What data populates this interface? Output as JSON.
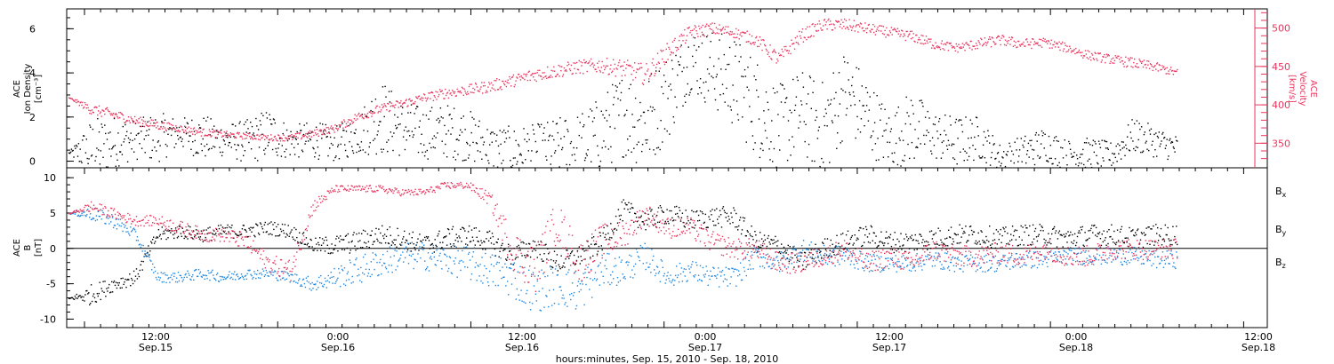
{
  "chart_data": [
    {
      "type": "scatter",
      "panel": "top",
      "left_axis": {
        "label_lines": [
          "ACE",
          "Ion Density",
          "[cm⁻³]"
        ],
        "ylim": [
          -0.3,
          6.9
        ],
        "ticks": [
          0,
          2,
          4,
          6
        ],
        "tick_labels": [
          "0",
          "2",
          "4",
          "6"
        ]
      },
      "right_axis": {
        "label_lines": [
          "ACE",
          "Velocity",
          "[km/s]"
        ],
        "ylim": [
          318,
          525
        ],
        "ticks": [
          350,
          400,
          450,
          500
        ],
        "tick_labels": [
          "350",
          "400",
          "450",
          "500"
        ],
        "color": "#e8375f"
      },
      "series": [
        {
          "key": "density",
          "color": "#000000",
          "axis": "left",
          "t": [
            0,
            0.2,
            0.4,
            0.6,
            0.8,
            1,
            1.2,
            1.4,
            1.6,
            1.8,
            2,
            2.2,
            2.4,
            2.6,
            2.8,
            3,
            3.2,
            3.4,
            3.6,
            3.8,
            4,
            4.2,
            4.4,
            4.6,
            4.8,
            5,
            5.2,
            5.4,
            5.6,
            5.8,
            6,
            6.2,
            6.4,
            6.6,
            6.8,
            7,
            7.2,
            7.4,
            7.6,
            7.8,
            8,
            8.2,
            8.4,
            8.6,
            8.8,
            9,
            9.2,
            9.4,
            9.6,
            9.8,
            10
          ],
          "v": [
            0.4,
            0.5,
            0.9,
            1.0,
            1.1,
            1.3,
            1.1,
            1.0,
            0.9,
            1.3,
            0.9,
            1.0,
            0.8,
            1.2,
            2.1,
            1.5,
            1.3,
            1.4,
            1.2,
            0.6,
            0.5,
            0.5,
            0.7,
            0.5,
            1.3,
            2.2,
            1.8,
            3.0,
            4.6,
            4.2,
            3.6,
            2.5,
            1.5,
            2.3,
            1.4,
            3.2,
            2.1,
            1.0,
            1.6,
            1.2,
            0.9,
            1.1,
            0.2,
            0.4,
            0.8,
            0.3,
            0.4,
            0.3,
            1.2,
            0.9,
            0.6
          ],
          "scatter": [
            0,
            3.0,
            2.4,
            1.8,
            2.3,
            1.4,
            2.1,
            1.5,
            2.0,
            2.4,
            1.5,
            1.7,
            1.6,
            1.8,
            3.6,
            2.6,
            2.4,
            2.5,
            2.4,
            2.2,
            2.2,
            2.4,
            2.6,
            3.6,
            3.4,
            4.0,
            4.4,
            4.0,
            3.0,
            3.6,
            4.2,
            4.6,
            4.0,
            3.8,
            4.6,
            4.0,
            3.6,
            2.6,
            3.4,
            2.2,
            2.4,
            2.0,
            1.2,
            1.6,
            1.6,
            1.4,
            1.4,
            1.2,
            1.6,
            1.4,
            1.2
          ]
        },
        {
          "key": "velocity",
          "color": "#e8375f",
          "axis": "right",
          "t": [
            0,
            0.2,
            0.4,
            0.6,
            0.8,
            1,
            1.2,
            1.4,
            1.6,
            1.8,
            2,
            2.2,
            2.4,
            2.6,
            2.8,
            3,
            3.2,
            3.4,
            3.6,
            3.8,
            4,
            4.2,
            4.4,
            4.6,
            4.8,
            5,
            5.2,
            5.4,
            5.6,
            5.8,
            6,
            6.2,
            6.4,
            6.6,
            6.8,
            7,
            7.2,
            7.4,
            7.6,
            7.8,
            8,
            8.2,
            8.4,
            8.6,
            8.8,
            9,
            9.2,
            9.4,
            9.6,
            9.8,
            10
          ],
          "v": [
            410,
            395,
            388,
            380,
            374,
            370,
            365,
            362,
            360,
            358,
            358,
            363,
            370,
            385,
            395,
            402,
            410,
            416,
            420,
            425,
            432,
            440,
            445,
            450,
            452,
            448,
            440,
            470,
            495,
            500,
            495,
            485,
            460,
            490,
            505,
            505,
            500,
            495,
            490,
            480,
            475,
            480,
            485,
            480,
            482,
            475,
            465,
            460,
            455,
            450,
            442
          ],
          "scatter": [
            0,
            14,
            14,
            12,
            12,
            10,
            10,
            9,
            8,
            8,
            9,
            10,
            10,
            12,
            12,
            12,
            12,
            14,
            14,
            16,
            16,
            18,
            18,
            18,
            20,
            24,
            28,
            24,
            18,
            16,
            14,
            16,
            20,
            18,
            16,
            16,
            14,
            14,
            14,
            14,
            12,
            14,
            14,
            14,
            12,
            12,
            12,
            12,
            14,
            12,
            10
          ]
        }
      ]
    },
    {
      "type": "scatter",
      "panel": "bottom",
      "left_axis": {
        "label_lines": [
          "ACE",
          "B",
          "[nT]"
        ],
        "ylim": [
          -11.2,
          11.4
        ],
        "ticks": [
          -10,
          -5,
          0,
          5,
          10
        ],
        "tick_labels": [
          "-10",
          "-5",
          "0",
          "5",
          "10"
        ]
      },
      "zero_line": true,
      "legend_placement": "right",
      "series": [
        {
          "name": "Bx",
          "name_main": "B",
          "name_sub": "x",
          "color": "#000000",
          "t": [
            0,
            0.2,
            0.4,
            0.6,
            0.8,
            1,
            1.2,
            1.4,
            1.6,
            1.8,
            2,
            2.2,
            2.4,
            2.6,
            2.8,
            3,
            3.2,
            3.4,
            3.6,
            3.8,
            4,
            4.2,
            4.4,
            4.6,
            4.8,
            5,
            5.2,
            5.4,
            5.6,
            5.8,
            6,
            6.2,
            6.4,
            6.6,
            6.8,
            7,
            7.2,
            7.4,
            7.6,
            7.8,
            8,
            8.2,
            8.4,
            8.6,
            8.8,
            9,
            9.2,
            9.4,
            9.6,
            9.8,
            10
          ],
          "v": [
            -7,
            -6.5,
            -5,
            -4,
            2,
            2.5,
            2.0,
            2.5,
            2.5,
            3.0,
            2.5,
            0.5,
            0.5,
            1.0,
            2.0,
            1.5,
            0.5,
            1.5,
            2.0,
            1.0,
            -1.0,
            0.5,
            -2.0,
            -1.0,
            1.0,
            5.5,
            4.0,
            5.0,
            4.0,
            4.5,
            4.5,
            1.0,
            0.5,
            -2.0,
            0.0,
            1.0,
            2.0,
            1.0,
            1.0,
            1.5,
            2.0,
            2.0,
            1.5,
            2.0,
            2.0,
            1.5,
            2.0,
            2.0,
            1.5,
            2.0,
            2.0
          ],
          "scatter": [
            0,
            3,
            2,
            2,
            2,
            2,
            2,
            2,
            2,
            2,
            2,
            2,
            3,
            3,
            3,
            3,
            3,
            3,
            3,
            3,
            3,
            3,
            3,
            3,
            3,
            3,
            3,
            3,
            3,
            3,
            3,
            3,
            3,
            3,
            3,
            3,
            3,
            3,
            3,
            3,
            3,
            3,
            3,
            3,
            3,
            3,
            3,
            3,
            3,
            3,
            3
          ]
        },
        {
          "name": "By",
          "name_main": "B",
          "name_sub": "y",
          "color": "#1f87df",
          "t": [
            0,
            0.2,
            0.4,
            0.6,
            0.8,
            1,
            1.2,
            1.4,
            1.6,
            1.8,
            2,
            2.2,
            2.4,
            2.6,
            2.8,
            3,
            3.2,
            3.4,
            3.6,
            3.8,
            4,
            4.2,
            4.4,
            4.6,
            4.8,
            5,
            5.2,
            5.4,
            5.6,
            5.8,
            6,
            6.2,
            6.4,
            6.6,
            6.8,
            7,
            7.2,
            7.4,
            7.6,
            7.8,
            8,
            8.2,
            8.4,
            8.6,
            8.8,
            9,
            9.2,
            9.4,
            9.6,
            9.8,
            10
          ],
          "v": [
            5,
            5,
            4,
            2,
            -4,
            -4,
            -3.5,
            -4,
            -3.5,
            -3.5,
            -4,
            -5,
            -4,
            -3,
            -2,
            -1,
            -1,
            -1.5,
            -2,
            -3,
            -4,
            -6,
            -5,
            -6,
            -3,
            -3,
            -1,
            -4,
            -3,
            -4,
            -4,
            -1,
            -2,
            0,
            -1,
            -1,
            -2,
            -2,
            -2,
            -1.5,
            -2,
            -2,
            -2,
            -1.5,
            -1.5,
            -1,
            -1,
            -1,
            -1,
            -1.5,
            -1.5
          ],
          "scatter": [
            0,
            2,
            2,
            1.5,
            1.5,
            1.5,
            1.5,
            1.5,
            1.5,
            1.5,
            1.5,
            2,
            3,
            4,
            4,
            4,
            4,
            4,
            5,
            5,
            6,
            6,
            6,
            6,
            5,
            4,
            4,
            3,
            3,
            3,
            3,
            3,
            3,
            3,
            3,
            3,
            2.5,
            2.5,
            2.5,
            2.5,
            2.5,
            2.5,
            2.5,
            2.5,
            2.5,
            2.5,
            2.5,
            2.5,
            2.5,
            2.5,
            2.5
          ]
        },
        {
          "name": "Bz",
          "name_main": "B",
          "name_sub": "z",
          "color": "#e8375f",
          "t": [
            0,
            0.2,
            0.4,
            0.6,
            0.8,
            1,
            1.2,
            1.4,
            1.6,
            1.8,
            2,
            2.2,
            2.4,
            2.6,
            2.8,
            3,
            3.2,
            3.4,
            3.6,
            3.8,
            4,
            4.2,
            4.4,
            4.6,
            4.8,
            5,
            5.2,
            5.4,
            5.6,
            5.8,
            6,
            6.2,
            6.4,
            6.6,
            6.8,
            7,
            7.2,
            7.4,
            7.6,
            7.8,
            8,
            8.2,
            8.4,
            8.6,
            8.8,
            9,
            9.2,
            9.4,
            9.6,
            9.8,
            10
          ],
          "v": [
            5,
            6,
            5,
            4,
            4,
            3,
            2,
            2,
            1,
            -2,
            -3,
            6,
            8.5,
            8.5,
            8.5,
            8,
            8,
            9,
            9,
            7,
            0,
            -3,
            4,
            -2,
            1,
            2,
            5,
            3,
            3,
            1,
            0,
            0,
            -2,
            -2,
            -1,
            0,
            -2,
            -1,
            -2,
            0,
            -1,
            -1,
            -0.5,
            -1,
            0,
            -1,
            -1,
            0,
            0,
            0,
            0
          ],
          "scatter": [
            0,
            1.5,
            1.5,
            1.5,
            1.5,
            2,
            2,
            2,
            2.5,
            2.5,
            3,
            2,
            1,
            1,
            1,
            1,
            1,
            1,
            1,
            2,
            6,
            7,
            6,
            6,
            5,
            4,
            3,
            3,
            3,
            3,
            3,
            3,
            3,
            3,
            3,
            3,
            3,
            3,
            3,
            3,
            3,
            3,
            3,
            3,
            3,
            3,
            3,
            3,
            3,
            3,
            3
          ]
        }
      ]
    }
  ],
  "x_axis": {
    "ticks": [
      {
        "time": "12:00",
        "date": "Sep.15"
      },
      {
        "time": "0:00",
        "date": "Sep.16"
      },
      {
        "time": "12:00",
        "date": "Sep.16"
      },
      {
        "time": "0:00",
        "date": "Sep.17"
      },
      {
        "time": "12:00",
        "date": "Sep.17"
      },
      {
        "time": "0:00",
        "date": "Sep.18"
      },
      {
        "time": "12:00",
        "date": "Sep.18"
      }
    ],
    "title": "hours:minutes, Sep. 15, 2010 - Sep. 18, 2010"
  },
  "colors": {
    "black": "#000000",
    "red": "#e8375f",
    "blue": "#1f87df"
  }
}
